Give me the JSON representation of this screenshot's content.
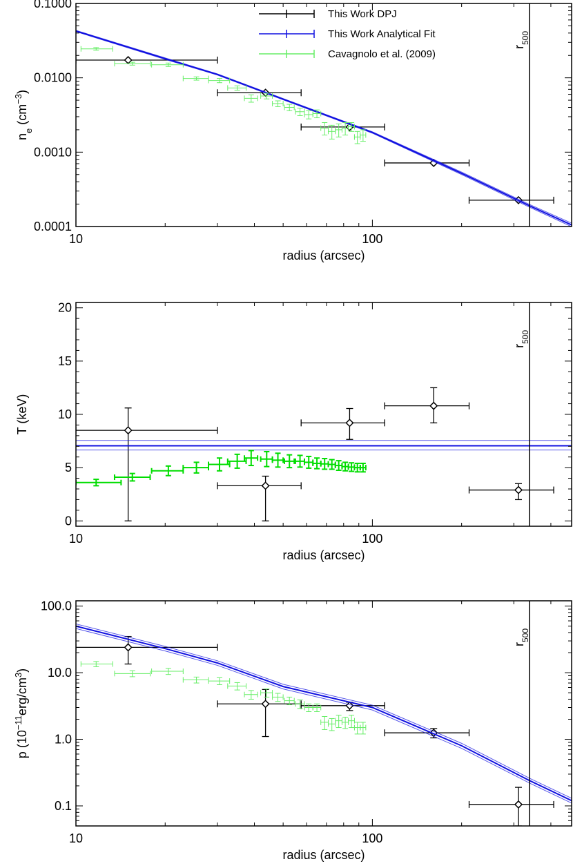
{
  "chart_data": [
    {
      "type": "scatter",
      "xlabel": "radius (arcsec)",
      "ylabel": [
        {
          "t": "n"
        },
        {
          "t": "e",
          "s": "sub"
        },
        {
          "t": " (cm"
        },
        {
          "t": "−3",
          "s": "sup"
        },
        {
          "t": ")"
        }
      ],
      "log_x": true,
      "log_y": true,
      "xlim": [
        10,
        470
      ],
      "xticks": [
        10,
        100
      ],
      "xminorticks": [
        20,
        30,
        40,
        50,
        60,
        70,
        80,
        90,
        200,
        300,
        400
      ],
      "ylim": [
        0.0001,
        0.1
      ],
      "yticks": [
        {
          "value": 0.0001,
          "label": "0.0001"
        },
        {
          "value": 0.001,
          "label": "0.0010"
        },
        {
          "value": 0.01,
          "label": "0.0100"
        },
        {
          "value": 0.1,
          "label": "0.1000"
        }
      ],
      "yminorticks": [
        0.0002,
        0.0003,
        0.0004,
        0.0005,
        0.0006,
        0.0007,
        0.0008,
        0.0009,
        0.002,
        0.003,
        0.004,
        0.005,
        0.006,
        0.007,
        0.008,
        0.009,
        0.02,
        0.03,
        0.04,
        0.05,
        0.06,
        0.07,
        0.08,
        0.09
      ],
      "annotation": {
        "text": "r",
        "sub": "500",
        "x": 339
      },
      "legend": "upper center",
      "series": [
        {
          "name": "This Work DPJ",
          "color": "#000000",
          "marker": "diamond",
          "x": [
            15,
            43.6,
            83.8,
            161,
            311
          ],
          "xlo": [
            10,
            30,
            57.5,
            110,
            212
          ],
          "xhi": [
            30,
            57.5,
            110,
            212,
            409
          ],
          "values": [
            0.0173,
            0.0063,
            0.00218,
            0.000716,
            0.000226
          ]
        },
        {
          "name": "This Work Analytical Fit",
          "color": "#1010e0",
          "x": [
            10,
            20,
            30,
            50,
            100,
            200,
            339,
            470
          ],
          "values": [
            0.0426,
            0.0181,
            0.0111,
            0.00516,
            0.00184,
            0.00052,
            0.00019,
            0.000105
          ],
          "lower": [
            0.0418,
            0.0177,
            0.0109,
            0.00506,
            0.0018,
            0.0005,
            0.000182,
            9.95e-05
          ],
          "upper": [
            0.0434,
            0.0185,
            0.0113,
            0.00526,
            0.00188,
            0.00054,
            0.000198,
            0.000111
          ]
        },
        {
          "name": "Cavagnolo et al. (2009)",
          "color": "#66ee66",
          "line_width": 1,
          "x": [
            11.7,
            15.5,
            20.5,
            25.5,
            30.5,
            35,
            39,
            44,
            48,
            52.5,
            57,
            61,
            65,
            69,
            73,
            77,
            81,
            85,
            89,
            93
          ],
          "xlo": [
            10.4,
            13.5,
            18,
            23,
            28,
            32.5,
            37,
            42,
            46,
            50.5,
            55,
            59,
            63,
            67,
            71,
            75,
            79,
            83,
            87,
            91
          ],
          "xhi": [
            13.3,
            17.8,
            23,
            28,
            33,
            37.5,
            41,
            46,
            50,
            54.5,
            59,
            63,
            67,
            71,
            75,
            79,
            83,
            87,
            91,
            95
          ],
          "values": [
            0.0245,
            0.0155,
            0.015,
            0.0098,
            0.0092,
            0.0073,
            0.0053,
            0.0057,
            0.0045,
            0.004,
            0.0035,
            0.0032,
            0.0033,
            0.0021,
            0.0019,
            0.002,
            0.0021,
            0.0022,
            0.0016,
            0.0017
          ],
          "yerr": [
            0.001,
            0.0007,
            0.0008,
            0.0005,
            0.0006,
            0.0005,
            0.0006,
            0.0005,
            0.0004,
            0.0004,
            0.0004,
            0.0004,
            0.0004,
            0.0004,
            0.0004,
            0.0004,
            0.0004,
            0.0003,
            0.0003,
            0.0003
          ]
        }
      ]
    },
    {
      "type": "scatter",
      "xlabel": "radius (arcsec)",
      "ylabel": [
        {
          "t": "T (keV)"
        }
      ],
      "log_x": true,
      "log_y": false,
      "xlim": [
        10,
        470
      ],
      "xticks": [
        10,
        100
      ],
      "xminorticks": [
        20,
        30,
        40,
        50,
        60,
        70,
        80,
        90,
        200,
        300,
        400
      ],
      "ylim": [
        -0.5,
        20.5
      ],
      "yticks": [
        0,
        5,
        10,
        15,
        20
      ],
      "yminorticks": [
        1,
        2,
        3,
        4,
        6,
        7,
        8,
        9,
        11,
        12,
        13,
        14,
        16,
        17,
        18,
        19
      ],
      "annotation": {
        "text": "r",
        "sub": "500",
        "x": 339
      },
      "series": [
        {
          "color": "#000000",
          "marker": "diamond",
          "x": [
            15,
            43.6,
            83.8,
            161,
            311
          ],
          "xlo": [
            10,
            30,
            57.5,
            110,
            212
          ],
          "xhi": [
            30,
            57.5,
            110,
            212,
            409
          ],
          "values": [
            8.5,
            3.3,
            9.2,
            10.8,
            2.9
          ],
          "ylo": [
            0,
            0,
            7.65,
            9.2,
            2.0
          ],
          "yhi": [
            10.6,
            4.2,
            10.55,
            12.5,
            3.5
          ]
        },
        {
          "color": "#1010e0",
          "x": [
            10,
            470
          ],
          "values": [
            7.05,
            7.05
          ],
          "lower": [
            6.65,
            6.65
          ],
          "upper": [
            7.55,
            7.55
          ]
        },
        {
          "color": "#00dd00",
          "line_width": 2,
          "x": [
            11.7,
            15.5,
            20.5,
            25.5,
            30.5,
            35,
            39,
            44,
            48,
            52.5,
            57,
            61,
            65,
            69,
            73,
            77,
            81,
            85,
            89,
            93
          ],
          "xlo": [
            10,
            13.5,
            18,
            23,
            28,
            32.5,
            37,
            42,
            46,
            50.5,
            55,
            59,
            63,
            67,
            71,
            75,
            79,
            83,
            87,
            91
          ],
          "xhi": [
            14.2,
            17.8,
            23,
            28,
            33,
            37.5,
            41,
            46,
            50,
            54.5,
            59,
            63,
            67,
            71,
            75,
            79,
            83,
            87,
            91,
            95
          ],
          "values": [
            3.6,
            4.1,
            4.7,
            5.0,
            5.3,
            5.6,
            5.9,
            5.8,
            5.7,
            5.6,
            5.6,
            5.5,
            5.4,
            5.35,
            5.3,
            5.2,
            5.1,
            5.05,
            5.0,
            5.0
          ],
          "yerr": [
            0.3,
            0.35,
            0.45,
            0.5,
            0.6,
            0.65,
            0.7,
            0.7,
            0.65,
            0.6,
            0.55,
            0.55,
            0.5,
            0.5,
            0.45,
            0.45,
            0.4,
            0.4,
            0.4,
            0.4
          ]
        }
      ]
    },
    {
      "type": "scatter",
      "xlabel": "radius (arcsec)",
      "ylabel": [
        {
          "t": "p (10"
        },
        {
          "t": "−11",
          "s": "sup"
        },
        {
          "t": "erg/cm"
        },
        {
          "t": "3",
          "s": "sup"
        },
        {
          "t": ")"
        }
      ],
      "log_x": true,
      "log_y": true,
      "xlim": [
        10,
        470
      ],
      "xticks": [
        10,
        100
      ],
      "xminorticks": [
        20,
        30,
        40,
        50,
        60,
        70,
        80,
        90,
        200,
        300,
        400
      ],
      "ylim": [
        0.05,
        120
      ],
      "yticks": [
        {
          "value": 0.1,
          "label": "0.1"
        },
        {
          "value": 1,
          "label": "1.0"
        },
        {
          "value": 10,
          "label": "10.0"
        },
        {
          "value": 100,
          "label": "100.0"
        }
      ],
      "yminorticks": [
        0.06,
        0.07,
        0.08,
        0.09,
        0.2,
        0.3,
        0.4,
        0.5,
        0.6,
        0.7,
        0.8,
        0.9,
        2,
        3,
        4,
        5,
        6,
        7,
        8,
        9,
        20,
        30,
        40,
        50,
        60,
        70,
        80,
        90
      ],
      "annotation": {
        "text": "r",
        "sub": "500",
        "x": 339
      },
      "series": [
        {
          "color": "#000000",
          "marker": "diamond",
          "x": [
            15,
            43.6,
            83.8,
            161,
            311
          ],
          "xlo": [
            10,
            30,
            57.5,
            110,
            212
          ],
          "xhi": [
            30,
            57.5,
            110,
            212,
            409
          ],
          "values": [
            24,
            3.4,
            3.2,
            1.25,
            0.105
          ],
          "ylo": [
            13.5,
            1.1,
            2.7,
            1.05,
            0.05
          ],
          "yhi": [
            35,
            5.6,
            3.6,
            1.45,
            0.19
          ]
        },
        {
          "color": "#1010e0",
          "x": [
            10,
            20,
            30,
            50,
            100,
            200,
            339,
            470
          ],
          "values": [
            50,
            23,
            14,
            6.2,
            3.0,
            0.8,
            0.24,
            0.12
          ],
          "lower": [
            46,
            21.2,
            12.9,
            5.7,
            2.75,
            0.73,
            0.22,
            0.11
          ],
          "upper": [
            54,
            24.8,
            15.1,
            6.7,
            3.25,
            0.87,
            0.26,
            0.13
          ]
        },
        {
          "color": "#66ee66",
          "line_width": 1,
          "x": [
            11.7,
            15.5,
            20.5,
            25.5,
            30.5,
            35,
            39,
            44,
            48,
            52.5,
            57,
            61,
            65,
            69,
            73,
            77,
            81,
            85,
            89,
            93
          ],
          "xlo": [
            10.4,
            13.5,
            18,
            23,
            28,
            32.5,
            37,
            42,
            46,
            50.5,
            55,
            59,
            63,
            67,
            71,
            75,
            79,
            83,
            87,
            91
          ],
          "xhi": [
            13.3,
            17.8,
            23,
            28,
            33,
            37.5,
            41,
            46,
            50,
            54.5,
            59,
            63,
            67,
            71,
            75,
            79,
            83,
            87,
            91,
            95
          ],
          "values": [
            13.5,
            9.7,
            10.5,
            7.8,
            7.5,
            6.3,
            4.7,
            5.0,
            4.3,
            3.8,
            3.4,
            3.0,
            3.0,
            1.8,
            1.7,
            1.9,
            1.8,
            1.9,
            1.5,
            1.5
          ],
          "yerr": [
            1.2,
            1.0,
            1.1,
            0.8,
            0.9,
            0.8,
            0.7,
            0.7,
            0.6,
            0.5,
            0.5,
            0.4,
            0.4,
            0.4,
            0.35,
            0.4,
            0.35,
            0.4,
            0.3,
            0.3
          ]
        }
      ]
    }
  ]
}
